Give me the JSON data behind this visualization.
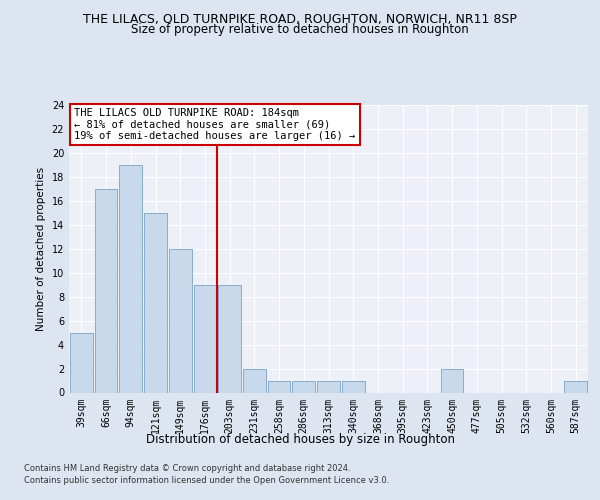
{
  "title": "THE LILACS, OLD TURNPIKE ROAD, ROUGHTON, NORWICH, NR11 8SP",
  "subtitle": "Size of property relative to detached houses in Roughton",
  "xlabel": "Distribution of detached houses by size in Roughton",
  "ylabel": "Number of detached properties",
  "categories": [
    "39sqm",
    "66sqm",
    "94sqm",
    "121sqm",
    "149sqm",
    "176sqm",
    "203sqm",
    "231sqm",
    "258sqm",
    "286sqm",
    "313sqm",
    "340sqm",
    "368sqm",
    "395sqm",
    "423sqm",
    "450sqm",
    "477sqm",
    "505sqm",
    "532sqm",
    "560sqm",
    "587sqm"
  ],
  "values": [
    5,
    17,
    19,
    15,
    12,
    9,
    9,
    2,
    1,
    1,
    1,
    1,
    0,
    0,
    0,
    2,
    0,
    0,
    0,
    0,
    1
  ],
  "bar_color": "#c8d9eb",
  "bar_edge_color": "#7ba3c8",
  "red_line_index": 5.5,
  "red_line_color": "#cc0000",
  "ylim": [
    0,
    24
  ],
  "yticks": [
    0,
    2,
    4,
    6,
    8,
    10,
    12,
    14,
    16,
    18,
    20,
    22,
    24
  ],
  "annotation_text": "THE LILACS OLD TURNPIKE ROAD: 184sqm\n← 81% of detached houses are smaller (69)\n19% of semi-detached houses are larger (16) →",
  "annotation_box_color": "#ffffff",
  "annotation_box_edge": "#cc0000",
  "footer_line1": "Contains HM Land Registry data © Crown copyright and database right 2024.",
  "footer_line2": "Contains public sector information licensed under the Open Government Licence v3.0.",
  "bg_color": "#dde5f0",
  "plot_bg_color": "#edf1f7",
  "title_fontsize": 9,
  "subtitle_fontsize": 8.5,
  "tick_fontsize": 7,
  "ylabel_fontsize": 7.5,
  "xlabel_fontsize": 8.5,
  "footer_fontsize": 6
}
